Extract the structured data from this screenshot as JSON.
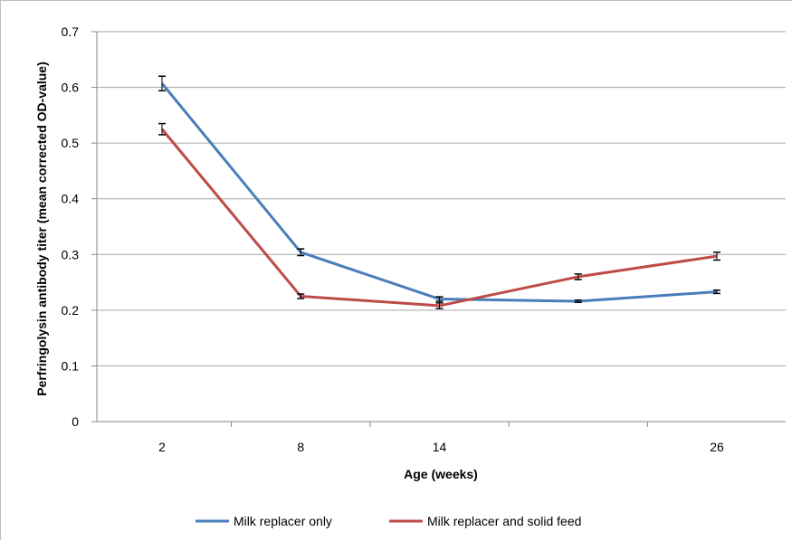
{
  "chart_data": {
    "type": "line",
    "title": "",
    "xlabel": "Age (weeks)",
    "ylabel": "Perfringolysin antibody titer (mean corrected OD-value)",
    "x": [
      2,
      8,
      14,
      20,
      26
    ],
    "x_tick_labels": [
      "2",
      "8",
      "14",
      "",
      "26"
    ],
    "y_ticks": [
      "0",
      "0.1",
      "0.2",
      "0.3",
      "0.4",
      "0.5",
      "0.6",
      "0.7"
    ],
    "ylim": [
      0,
      0.7
    ],
    "grid": "horizontal",
    "legend_position": "bottom",
    "series": [
      {
        "name": "Milk replacer only",
        "color": "#4a7ebb",
        "values": [
          0.607,
          0.304,
          0.22,
          0.216,
          0.233
        ],
        "error": [
          0.013,
          0.006,
          0.004,
          0.002,
          0.003
        ]
      },
      {
        "name": "Milk replacer and solid feed",
        "color": "#be4b48",
        "values": [
          0.525,
          0.225,
          0.208,
          0.26,
          0.297
        ],
        "error": [
          0.01,
          0.004,
          0.005,
          0.005,
          0.007
        ]
      }
    ]
  }
}
